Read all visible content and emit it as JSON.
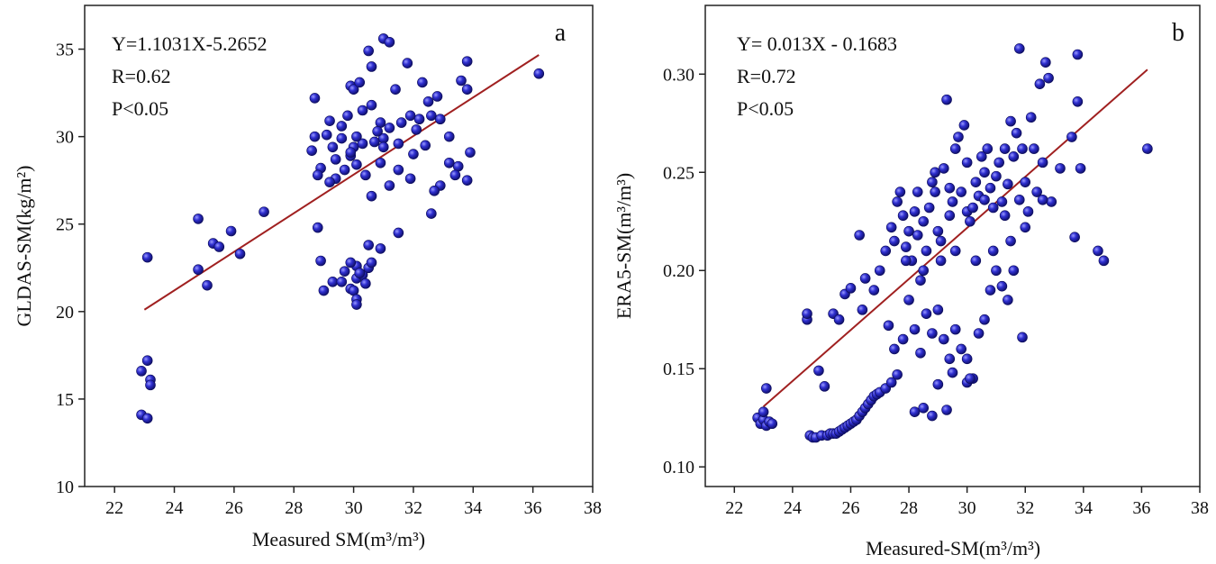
{
  "chart_data": [
    {
      "type": "scatter",
      "panel_label": "a",
      "xlabel": "Measured SM(m³/m³)",
      "ylabel": "GLDAS-SM(kg/m²)",
      "xlim": [
        21,
        38
      ],
      "ylim": [
        10,
        37.5
      ],
      "xticks": [
        "22",
        "24",
        "26",
        "28",
        "30",
        "32",
        "34",
        "36",
        "38"
      ],
      "yticks": [
        "10",
        "15",
        "20",
        "25",
        "30",
        "35"
      ],
      "annotations": [
        "Y=1.1031X-5.2652",
        "R=0.62",
        "P<0.05"
      ],
      "marker_color": "#2a2ac0",
      "fit_color": "#a02020",
      "fit_line": {
        "slope": 1.1031,
        "intercept": -5.2652,
        "x_range": [
          23.0,
          36.2
        ]
      },
      "points": [
        [
          23.1,
          23.1
        ],
        [
          22.9,
          16.6
        ],
        [
          23.1,
          17.2
        ],
        [
          23.2,
          16.1
        ],
        [
          23.2,
          15.8
        ],
        [
          22.9,
          14.1
        ],
        [
          23.1,
          13.9
        ],
        [
          24.8,
          25.3
        ],
        [
          24.8,
          22.4
        ],
        [
          25.1,
          21.5
        ],
        [
          25.3,
          23.9
        ],
        [
          25.5,
          23.7
        ],
        [
          25.9,
          24.6
        ],
        [
          26.2,
          23.3
        ],
        [
          27.0,
          25.7
        ],
        [
          28.7,
          32.2
        ],
        [
          28.7,
          30.0
        ],
        [
          28.6,
          29.2
        ],
        [
          28.9,
          28.2
        ],
        [
          28.8,
          27.8
        ],
        [
          28.8,
          24.8
        ],
        [
          29.1,
          30.1
        ],
        [
          29.3,
          29.4
        ],
        [
          29.4,
          28.7
        ],
        [
          29.6,
          29.9
        ],
        [
          29.2,
          30.9
        ],
        [
          29.8,
          31.2
        ],
        [
          29.9,
          32.9
        ],
        [
          30.0,
          32.7
        ],
        [
          30.2,
          33.1
        ],
        [
          30.5,
          34.9
        ],
        [
          30.6,
          34.0
        ],
        [
          31.0,
          35.6
        ],
        [
          31.2,
          35.4
        ],
        [
          30.3,
          31.5
        ],
        [
          30.6,
          31.8
        ],
        [
          30.9,
          30.8
        ],
        [
          31.0,
          29.9
        ],
        [
          31.2,
          30.5
        ],
        [
          31.4,
          32.7
        ],
        [
          31.6,
          30.8
        ],
        [
          31.8,
          34.2
        ],
        [
          31.9,
          31.2
        ],
        [
          32.1,
          30.4
        ],
        [
          32.3,
          33.1
        ],
        [
          32.5,
          32.0
        ],
        [
          32.6,
          31.2
        ],
        [
          32.8,
          32.3
        ],
        [
          32.9,
          31.0
        ],
        [
          33.2,
          30.0
        ],
        [
          33.2,
          28.5
        ],
        [
          33.5,
          28.3
        ],
        [
          33.6,
          33.2
        ],
        [
          33.8,
          34.3
        ],
        [
          33.8,
          32.7
        ],
        [
          33.9,
          29.1
        ],
        [
          33.8,
          27.5
        ],
        [
          33.4,
          27.8
        ],
        [
          32.9,
          27.2
        ],
        [
          32.7,
          26.9
        ],
        [
          32.6,
          25.6
        ],
        [
          31.9,
          27.6
        ],
        [
          31.5,
          28.1
        ],
        [
          31.2,
          27.2
        ],
        [
          30.9,
          28.5
        ],
        [
          30.6,
          26.6
        ],
        [
          30.4,
          27.8
        ],
        [
          30.1,
          28.4
        ],
        [
          29.9,
          28.9
        ],
        [
          29.7,
          28.1
        ],
        [
          29.4,
          27.6
        ],
        [
          29.2,
          27.4
        ],
        [
          30.0,
          29.4
        ],
        [
          30.3,
          29.6
        ],
        [
          29.6,
          30.6
        ],
        [
          29.9,
          29.1
        ],
        [
          30.1,
          30.0
        ],
        [
          30.8,
          30.3
        ],
        [
          31.5,
          29.6
        ],
        [
          31.0,
          29.4
        ],
        [
          30.7,
          29.7
        ],
        [
          28.9,
          22.9
        ],
        [
          29.0,
          21.2
        ],
        [
          29.3,
          21.7
        ],
        [
          29.6,
          21.7
        ],
        [
          29.7,
          22.3
        ],
        [
          29.9,
          21.3
        ],
        [
          30.1,
          21.9
        ],
        [
          30.1,
          22.6
        ],
        [
          30.3,
          22.1
        ],
        [
          30.4,
          21.6
        ],
        [
          30.5,
          22.5
        ],
        [
          30.6,
          22.8
        ],
        [
          30.2,
          22.2
        ],
        [
          30.0,
          21.2
        ],
        [
          30.1,
          20.7
        ],
        [
          30.1,
          20.4
        ],
        [
          29.9,
          22.8
        ],
        [
          30.5,
          23.8
        ],
        [
          30.9,
          23.6
        ],
        [
          31.5,
          24.5
        ],
        [
          36.2,
          33.6
        ],
        [
          32.2,
          31.0
        ],
        [
          32.0,
          29.0
        ],
        [
          32.4,
          29.5
        ]
      ]
    },
    {
      "type": "scatter",
      "panel_label": "b",
      "xlabel": "Measured-SM(m³/m³)",
      "ylabel": "ERA5-SM(m³/m³)",
      "xlim": [
        21,
        38
      ],
      "ylim": [
        0.09,
        0.335
      ],
      "xticks": [
        "22",
        "24",
        "26",
        "28",
        "30",
        "32",
        "34",
        "36",
        "38"
      ],
      "yticks": [
        "0.10",
        "0.15",
        "0.20",
        "0.25",
        "0.30"
      ],
      "annotations": [
        "Y= 0.013X - 0.1683",
        "R=0.72",
        "P<0.05"
      ],
      "marker_color": "#2a2ac0",
      "fit_color": "#a02020",
      "fit_line": {
        "slope": 0.013,
        "intercept": -0.1683,
        "x_range": [
          23.0,
          36.2
        ]
      },
      "points": [
        [
          22.8,
          0.125
        ],
        [
          22.9,
          0.122
        ],
        [
          23.0,
          0.124
        ],
        [
          23.1,
          0.121
        ],
        [
          23.2,
          0.123
        ],
        [
          23.3,
          0.122
        ],
        [
          23.1,
          0.14
        ],
        [
          23.0,
          0.128
        ],
        [
          24.5,
          0.175
        ],
        [
          24.5,
          0.178
        ],
        [
          24.6,
          0.116
        ],
        [
          24.7,
          0.115
        ],
        [
          24.8,
          0.115
        ],
        [
          24.9,
          0.149
        ],
        [
          25.0,
          0.116
        ],
        [
          25.1,
          0.141
        ],
        [
          25.2,
          0.116
        ],
        [
          25.3,
          0.117
        ],
        [
          25.4,
          0.117
        ],
        [
          25.5,
          0.117
        ],
        [
          25.6,
          0.118
        ],
        [
          25.7,
          0.119
        ],
        [
          25.8,
          0.12
        ],
        [
          25.9,
          0.121
        ],
        [
          26.0,
          0.122
        ],
        [
          26.1,
          0.123
        ],
        [
          26.2,
          0.124
        ],
        [
          26.3,
          0.126
        ],
        [
          26.4,
          0.128
        ],
        [
          26.5,
          0.13
        ],
        [
          26.6,
          0.132
        ],
        [
          26.7,
          0.134
        ],
        [
          26.8,
          0.136
        ],
        [
          26.9,
          0.137
        ],
        [
          27.0,
          0.138
        ],
        [
          27.2,
          0.14
        ],
        [
          27.4,
          0.143
        ],
        [
          27.6,
          0.147
        ],
        [
          25.4,
          0.178
        ],
        [
          25.6,
          0.175
        ],
        [
          25.8,
          0.188
        ],
        [
          26.0,
          0.191
        ],
        [
          26.3,
          0.218
        ],
        [
          26.5,
          0.196
        ],
        [
          26.8,
          0.19
        ],
        [
          27.0,
          0.2
        ],
        [
          27.2,
          0.21
        ],
        [
          27.4,
          0.222
        ],
        [
          27.5,
          0.215
        ],
        [
          27.6,
          0.235
        ],
        [
          27.7,
          0.24
        ],
        [
          27.8,
          0.228
        ],
        [
          27.9,
          0.212
        ],
        [
          28.0,
          0.22
        ],
        [
          28.1,
          0.205
        ],
        [
          28.2,
          0.23
        ],
        [
          28.3,
          0.218
        ],
        [
          28.4,
          0.195
        ],
        [
          28.5,
          0.225
        ],
        [
          28.6,
          0.21
        ],
        [
          28.7,
          0.232
        ],
        [
          28.8,
          0.245
        ],
        [
          28.9,
          0.24
        ],
        [
          29.0,
          0.22
        ],
        [
          29.1,
          0.215
        ],
        [
          29.2,
          0.252
        ],
        [
          29.3,
          0.287
        ],
        [
          29.4,
          0.228
        ],
        [
          29.5,
          0.235
        ],
        [
          29.6,
          0.262
        ],
        [
          29.7,
          0.268
        ],
        [
          29.8,
          0.24
        ],
        [
          29.9,
          0.274
        ],
        [
          30.0,
          0.23
        ],
        [
          30.1,
          0.225
        ],
        [
          30.2,
          0.232
        ],
        [
          30.3,
          0.245
        ],
        [
          30.4,
          0.238
        ],
        [
          30.5,
          0.258
        ],
        [
          30.6,
          0.25
        ],
        [
          30.7,
          0.262
        ],
        [
          30.8,
          0.242
        ],
        [
          30.9,
          0.232
        ],
        [
          31.0,
          0.248
        ],
        [
          31.1,
          0.255
        ],
        [
          31.2,
          0.235
        ],
        [
          31.3,
          0.262
        ],
        [
          31.4,
          0.244
        ],
        [
          31.5,
          0.276
        ],
        [
          31.6,
          0.258
        ],
        [
          31.7,
          0.27
        ],
        [
          31.8,
          0.313
        ],
        [
          31.9,
          0.262
        ],
        [
          32.0,
          0.245
        ],
        [
          32.1,
          0.23
        ],
        [
          32.2,
          0.278
        ],
        [
          32.3,
          0.262
        ],
        [
          32.4,
          0.24
        ],
        [
          32.5,
          0.295
        ],
        [
          32.6,
          0.255
        ],
        [
          32.7,
          0.306
        ],
        [
          32.8,
          0.298
        ],
        [
          32.9,
          0.235
        ],
        [
          33.2,
          0.252
        ],
        [
          33.6,
          0.268
        ],
        [
          33.7,
          0.217
        ],
        [
          33.8,
          0.31
        ],
        [
          33.8,
          0.286
        ],
        [
          33.9,
          0.252
        ],
        [
          34.5,
          0.21
        ],
        [
          34.7,
          0.205
        ],
        [
          36.2,
          0.262
        ],
        [
          27.3,
          0.172
        ],
        [
          27.5,
          0.16
        ],
        [
          27.8,
          0.165
        ],
        [
          28.0,
          0.185
        ],
        [
          28.2,
          0.17
        ],
        [
          28.4,
          0.158
        ],
        [
          28.6,
          0.178
        ],
        [
          28.8,
          0.168
        ],
        [
          29.0,
          0.18
        ],
        [
          29.2,
          0.165
        ],
        [
          29.4,
          0.155
        ],
        [
          29.6,
          0.17
        ],
        [
          29.8,
          0.16
        ],
        [
          30.0,
          0.155
        ],
        [
          30.2,
          0.145
        ],
        [
          30.4,
          0.168
        ],
        [
          30.6,
          0.175
        ],
        [
          30.8,
          0.19
        ],
        [
          31.0,
          0.2
        ],
        [
          31.2,
          0.192
        ],
        [
          31.4,
          0.185
        ],
        [
          31.6,
          0.2
        ],
        [
          31.9,
          0.166
        ],
        [
          30.0,
          0.143
        ],
        [
          29.5,
          0.148
        ],
        [
          29.0,
          0.142
        ],
        [
          28.5,
          0.13
        ],
        [
          28.2,
          0.128
        ],
        [
          28.8,
          0.126
        ],
        [
          29.3,
          0.129
        ],
        [
          30.1,
          0.145
        ],
        [
          26.4,
          0.18
        ],
        [
          27.9,
          0.205
        ],
        [
          28.5,
          0.2
        ],
        [
          29.1,
          0.205
        ],
        [
          29.6,
          0.21
        ],
        [
          30.3,
          0.205
        ],
        [
          30.9,
          0.21
        ],
        [
          31.5,
          0.215
        ],
        [
          32.0,
          0.222
        ],
        [
          28.3,
          0.24
        ],
        [
          28.9,
          0.25
        ],
        [
          29.4,
          0.242
        ],
        [
          30.0,
          0.255
        ],
        [
          30.6,
          0.236
        ],
        [
          31.3,
          0.228
        ],
        [
          31.8,
          0.236
        ],
        [
          32.6,
          0.236
        ]
      ]
    }
  ]
}
